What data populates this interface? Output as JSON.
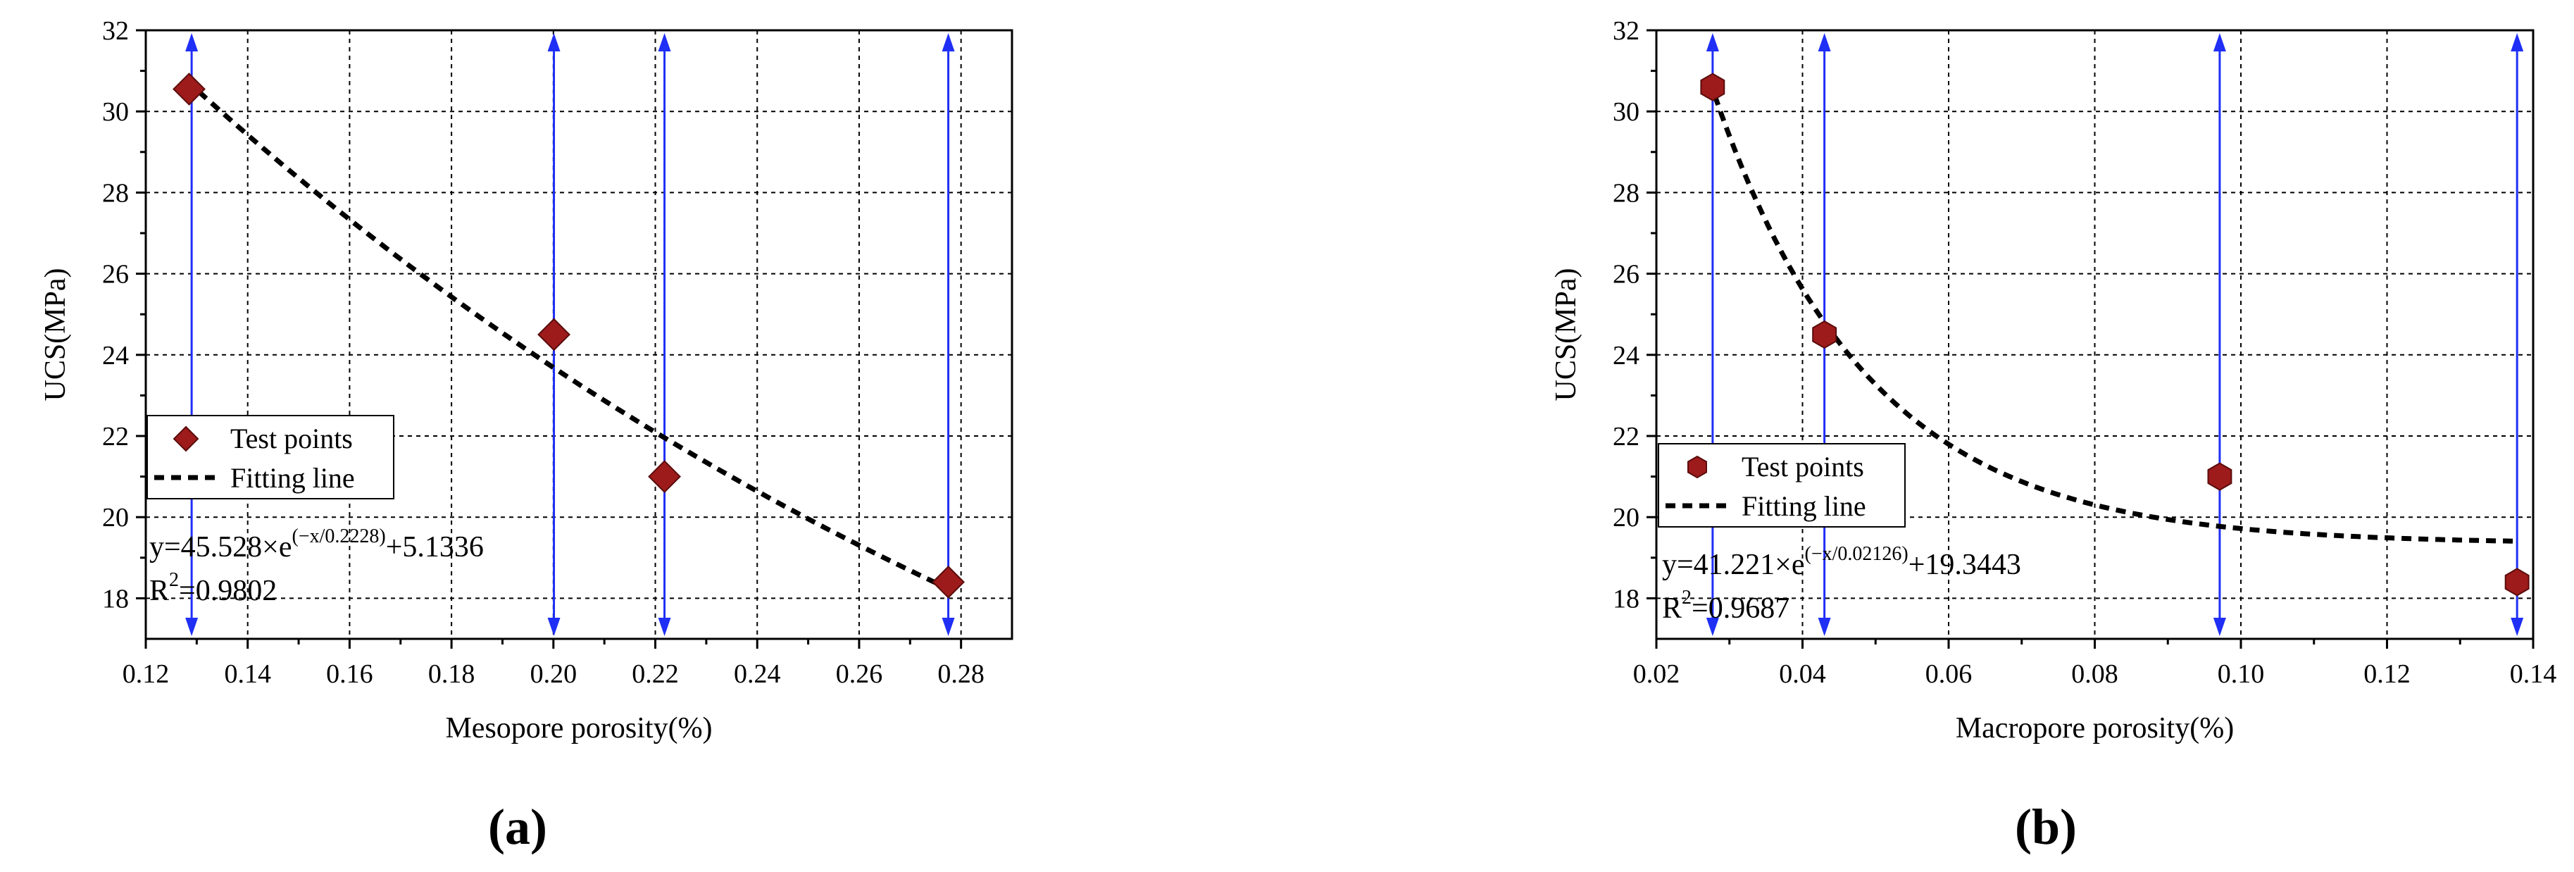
{
  "chart_data": [
    {
      "panel": "(a)",
      "type": "scatter",
      "xlabel": "Mesopore porosity(%)",
      "ylabel": "UCS(MPa)",
      "xlim": [
        0.12,
        0.29
      ],
      "ylim": [
        17,
        32
      ],
      "xticks": [
        0.12,
        0.14,
        0.16,
        0.18,
        0.2,
        0.22,
        0.24,
        0.26,
        0.28
      ],
      "xtick_labels": [
        "0.12",
        "0.14",
        "0.16",
        "0.18",
        "0.20",
        "0.22",
        "0.24",
        "0.26",
        "0.28"
      ],
      "yticks": [
        18,
        20,
        22,
        24,
        26,
        28,
        30,
        32
      ],
      "ytick_labels": [
        "18",
        "20",
        "22",
        "24",
        "26",
        "28",
        "30",
        "32"
      ],
      "grid": true,
      "series": [
        {
          "name": "Test points",
          "marker": "diamond",
          "color": "#9e1b1b",
          "x": [
            0.1285,
            0.2001,
            0.2218,
            0.2775
          ],
          "y": [
            30.55,
            24.5,
            21.0,
            18.4
          ]
        },
        {
          "name": "Fitting line",
          "style": "dashed",
          "color": "#000000",
          "model": {
            "a": 45.528,
            "t": 0.2228,
            "c": 5.1336
          },
          "x_range": [
            0.128,
            0.278
          ]
        }
      ],
      "vertical_lines": [
        {
          "x": 0.129,
          "style": "solid"
        },
        {
          "x": 0.2001,
          "style": "solid"
        },
        {
          "x": 0.2218,
          "style": "solid"
        },
        {
          "x": 0.2775,
          "style": "solid"
        }
      ],
      "legend": {
        "position": "left-middle"
      },
      "equation": {
        "prefix": "y=45.528×e",
        "exponent": "(−x/0.2228)",
        "suffix": "+5.1336",
        "r2_prefix": "R",
        "r2_sup": "2",
        "r2_suffix": "=0.9802"
      }
    },
    {
      "panel": "(b)",
      "type": "scatter",
      "xlabel": "Macropore porosity(%)",
      "ylabel": "UCS(MPa)",
      "xlim": [
        0.02,
        0.14
      ],
      "ylim": [
        17,
        32
      ],
      "xticks": [
        0.02,
        0.04,
        0.06,
        0.08,
        0.1,
        0.12,
        0.14
      ],
      "xtick_labels": [
        "0.02",
        "0.04",
        "0.06",
        "0.08",
        "0.10",
        "0.12",
        "0.14"
      ],
      "yticks": [
        18,
        20,
        22,
        24,
        26,
        28,
        30,
        32
      ],
      "ytick_labels": [
        "18",
        "20",
        "22",
        "24",
        "26",
        "28",
        "30",
        "32"
      ],
      "grid": true,
      "series": [
        {
          "name": "Test points",
          "marker": "hexagon",
          "color": "#9e1b1b",
          "x": [
            0.0277,
            0.043,
            0.0971,
            0.1378
          ],
          "y": [
            30.6,
            24.5,
            21.0,
            18.4
          ]
        },
        {
          "name": "Fitting line",
          "style": "dashed",
          "color": "#000000",
          "model": {
            "a": 41.221,
            "t": 0.02126,
            "c": 19.3443
          },
          "x_range": [
            0.028,
            0.138
          ]
        }
      ],
      "vertical_lines": [
        {
          "x": 0.0277,
          "style": "solid"
        },
        {
          "x": 0.043,
          "style": "solid"
        },
        {
          "x": 0.0971,
          "style": "solid"
        },
        {
          "x": 0.1378,
          "style": "solid"
        }
      ],
      "legend": {
        "position": "left-middle"
      },
      "equation": {
        "prefix": "y=41.221×e",
        "exponent": "(−x/0.02126)",
        "suffix": "+19.3443",
        "r2_prefix": "R",
        "r2_sup": "2",
        "r2_suffix": "=0.9687"
      }
    }
  ]
}
